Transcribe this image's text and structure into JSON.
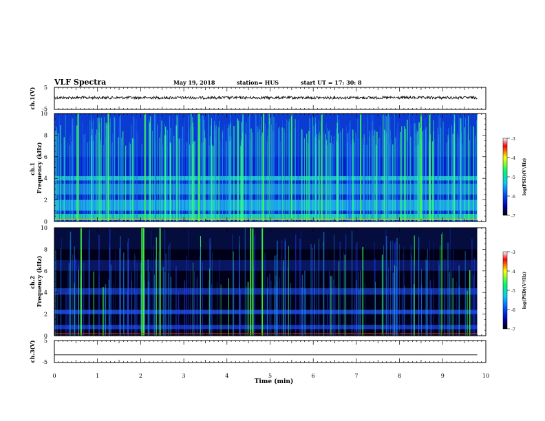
{
  "header": {
    "title": "VLF Spectra",
    "date": "May 19, 2018",
    "station": "station= HUS",
    "start": "start  UT  =   17: 30: 8"
  },
  "chart_data": [
    {
      "type": "line",
      "title": "",
      "ylabel": "ch.1(V)",
      "ylim": [
        -5,
        5
      ],
      "yticks": [
        "5",
        "-5"
      ],
      "xlim": [
        0,
        10
      ],
      "series": [
        {
          "values": [
            [
              0,
              0.3
            ],
            [
              9.8,
              0.3
            ]
          ]
        }
      ]
    },
    {
      "type": "heatmap",
      "ylabel": "ch.1\nFrequency (kHz)",
      "xlim": [
        0,
        10
      ],
      "ylim": [
        0,
        10
      ],
      "yticks": [
        "0",
        "2",
        "4",
        "6",
        "8",
        "10"
      ],
      "data_extent_min": 9.8,
      "colorbar": {
        "label": "log(PSD)(V²/Hz)",
        "range": [
          -7,
          -3
        ],
        "ticks": [
          "-3",
          "-4",
          "-5",
          "-6",
          "-7"
        ]
      }
    },
    {
      "type": "heatmap",
      "ylabel": "ch.2\nFrequency (kHz)",
      "xlim": [
        0,
        10
      ],
      "ylim": [
        0,
        10
      ],
      "yticks": [
        "0",
        "2",
        "4",
        "6",
        "8",
        "10"
      ],
      "data_extent_min": 9.8,
      "colorbar": {
        "label": "log(PSD)(V²/Hz)",
        "range": [
          -7,
          -3
        ],
        "ticks": [
          "-3",
          "-4",
          "-5",
          "-6",
          "-7"
        ]
      }
    },
    {
      "type": "line",
      "ylabel": "ch.3(V)",
      "ylim": [
        -5,
        5
      ],
      "yticks": [
        "5",
        "-5"
      ],
      "xlim": [
        0,
        10
      ],
      "xlabel": "Time (min)",
      "xticks": [
        "0",
        "1",
        "2",
        "3",
        "4",
        "5",
        "6",
        "7",
        "8",
        "9",
        "10"
      ],
      "series": [
        {
          "values": [
            [
              0,
              -1.5
            ],
            [
              9.8,
              -1.5
            ]
          ]
        }
      ]
    }
  ],
  "colors": {
    "colormap": [
      "#000000",
      "#0000aa",
      "#0044ff",
      "#00ccff",
      "#00ff66",
      "#ffff00",
      "#ff0000",
      "#ffffff"
    ]
  }
}
